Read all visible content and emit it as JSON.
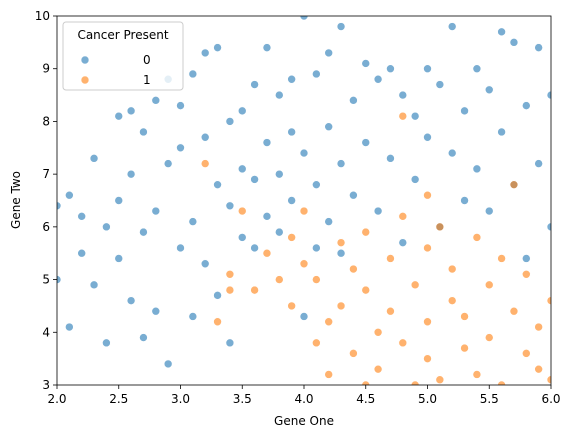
{
  "chart_data": {
    "type": "scatter",
    "x_label": "Gene One",
    "y_label": "Gene Two",
    "xlim": [
      2,
      6
    ],
    "ylim": [
      3,
      10
    ],
    "xticks": [
      {
        "value": 2,
        "label": "2.0"
      },
      {
        "value": 2.5,
        "label": "2.5"
      },
      {
        "value": 3,
        "label": "3.0"
      },
      {
        "value": 3.5,
        "label": "3.5"
      },
      {
        "value": 4,
        "label": "4.0"
      },
      {
        "value": 4.5,
        "label": "4.5"
      },
      {
        "value": 5,
        "label": "5.0"
      },
      {
        "value": 5.5,
        "label": "5.5"
      },
      {
        "value": 6,
        "label": "6.0"
      }
    ],
    "yticks": [
      3,
      4,
      5,
      6,
      7,
      8,
      9,
      10
    ],
    "legend_title": "Cancer Present",
    "legend_loc": "upper left",
    "series": [
      {
        "name": "0",
        "color": "#1f77b4",
        "x": [
          2.0,
          2.0,
          2.1,
          2.1,
          2.2,
          2.2,
          2.3,
          2.3,
          2.4,
          2.4,
          2.5,
          2.5,
          2.5,
          2.6,
          2.6,
          2.6,
          2.7,
          2.7,
          2.7,
          2.8,
          2.8,
          2.8,
          2.9,
          2.9,
          2.9,
          3.0,
          3.0,
          3.0,
          3.1,
          3.1,
          3.1,
          3.2,
          3.2,
          3.2,
          3.3,
          3.3,
          3.3,
          3.4,
          3.4,
          3.4,
          3.5,
          3.5,
          3.5,
          3.6,
          3.6,
          3.6,
          3.7,
          3.7,
          3.7,
          3.8,
          3.8,
          3.8,
          3.9,
          3.9,
          3.9,
          4.0,
          4.0,
          4.0,
          4.1,
          4.1,
          4.1,
          4.2,
          4.2,
          4.2,
          4.3,
          4.3,
          4.3,
          4.4,
          4.4,
          4.5,
          4.5,
          4.6,
          4.6,
          4.7,
          4.7,
          4.8,
          4.8,
          4.9,
          4.9,
          5.0,
          5.0,
          5.1,
          5.1,
          5.2,
          5.2,
          5.3,
          5.3,
          5.4,
          5.4,
          5.5,
          5.5,
          5.6,
          5.6,
          5.7,
          5.7,
          5.8,
          5.8,
          5.9,
          5.9,
          6.0,
          6.0
        ],
        "values": [
          6.4,
          5.0,
          6.6,
          4.1,
          5.5,
          6.2,
          7.3,
          4.9,
          6.0,
          3.8,
          8.1,
          5.4,
          6.5,
          8.2,
          4.6,
          7.0,
          7.8,
          5.9,
          3.9,
          8.4,
          6.3,
          4.4,
          8.8,
          7.2,
          3.4,
          8.3,
          5.6,
          7.5,
          8.9,
          6.1,
          4.3,
          9.3,
          7.7,
          5.3,
          9.4,
          6.8,
          4.7,
          8.0,
          6.4,
          3.8,
          8.2,
          7.1,
          5.8,
          8.7,
          6.9,
          5.6,
          9.4,
          7.6,
          6.2,
          8.5,
          7.0,
          5.9,
          8.8,
          7.8,
          6.5,
          10.0,
          7.4,
          4.3,
          8.9,
          6.8,
          5.6,
          9.3,
          7.9,
          6.1,
          9.8,
          7.2,
          5.5,
          8.4,
          6.6,
          9.1,
          7.6,
          8.8,
          6.3,
          9.0,
          7.3,
          8.5,
          5.7,
          8.1,
          6.9,
          9.0,
          7.7,
          8.7,
          6.0,
          9.8,
          7.4,
          8.2,
          6.5,
          9.0,
          7.1,
          8.6,
          6.3,
          9.7,
          7.8,
          9.5,
          6.8,
          8.3,
          5.4,
          9.4,
          7.2,
          8.5,
          6.0
        ]
      },
      {
        "name": "1",
        "color": "#ff7f0e",
        "x": [
          3.2,
          3.3,
          3.4,
          3.4,
          3.5,
          3.6,
          3.7,
          3.8,
          3.9,
          3.9,
          4.0,
          4.0,
          4.1,
          4.1,
          4.2,
          4.2,
          4.3,
          4.3,
          4.4,
          4.4,
          4.5,
          4.5,
          4.5,
          4.6,
          4.6,
          4.7,
          4.7,
          4.8,
          4.8,
          4.9,
          4.9,
          5.0,
          5.0,
          5.0,
          5.1,
          5.1,
          5.2,
          5.2,
          5.3,
          5.3,
          5.4,
          5.4,
          5.5,
          5.5,
          5.6,
          5.6,
          5.7,
          5.7,
          5.8,
          5.8,
          5.9,
          5.9,
          6.0,
          6.0,
          4.8,
          5.0
        ],
        "values": [
          7.2,
          4.2,
          5.1,
          4.8,
          6.3,
          4.8,
          5.5,
          5.0,
          4.5,
          5.8,
          5.3,
          6.3,
          3.8,
          5.0,
          4.2,
          3.2,
          5.7,
          4.5,
          3.6,
          5.2,
          3.0,
          4.8,
          5.9,
          4.0,
          3.3,
          5.4,
          4.4,
          3.8,
          6.2,
          4.9,
          3.0,
          3.5,
          5.6,
          4.2,
          6.0,
          3.1,
          4.6,
          5.2,
          3.7,
          4.3,
          5.8,
          3.2,
          4.9,
          3.9,
          5.4,
          3.0,
          4.4,
          6.8,
          3.6,
          5.1,
          4.1,
          3.3,
          4.6,
          3.1,
          8.1,
          6.6
        ]
      }
    ]
  }
}
